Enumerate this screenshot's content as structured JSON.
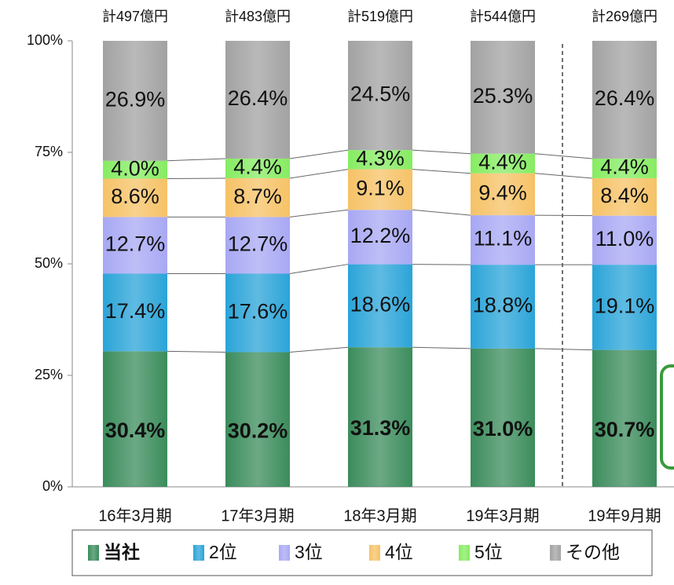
{
  "chart_data": {
    "type": "stacked_bar",
    "top_labels": [
      "計497億円",
      "計483億円",
      "計519億円",
      "計544億円",
      "計269億円"
    ],
    "categories": [
      "16年3月期",
      "17年3月期",
      "18年3月期",
      "19年3月期",
      "19年9月期"
    ],
    "series": [
      {
        "name": "当社",
        "color": "#3b8c5c",
        "values": [
          30.4,
          30.2,
          31.3,
          31.0,
          30.7
        ],
        "value_labels": [
          "30.4%",
          "30.2%",
          "31.3%",
          "31.0%",
          "30.7%"
        ]
      },
      {
        "name": "2位",
        "color": "#2aa4d8",
        "values": [
          17.4,
          17.6,
          18.6,
          18.8,
          19.1
        ],
        "value_labels": [
          "17.4%",
          "17.6%",
          "18.6%",
          "18.8%",
          "19.1%"
        ]
      },
      {
        "name": "3位",
        "color": "#a8a8f4",
        "values": [
          12.7,
          12.7,
          12.2,
          11.1,
          11.0
        ],
        "value_labels": [
          "12.7%",
          "12.7%",
          "12.2%",
          "11.1%",
          "11.0%"
        ]
      },
      {
        "name": "4位",
        "color": "#f6c266",
        "values": [
          8.6,
          8.7,
          9.1,
          9.4,
          8.4
        ],
        "value_labels": [
          "8.6%",
          "8.7%",
          "9.1%",
          "9.4%",
          "8.4%"
        ]
      },
      {
        "name": "5位",
        "color": "#86ec62",
        "values": [
          4.0,
          4.4,
          4.3,
          4.4,
          4.4
        ],
        "value_labels": [
          "4.0%",
          "4.4%",
          "4.3%",
          "4.4%",
          "4.4%"
        ]
      },
      {
        "name": "その他",
        "color": "#a2a2a2",
        "values": [
          26.9,
          26.4,
          24.5,
          25.3,
          26.4
        ],
        "value_labels": [
          "26.9%",
          "26.4%",
          "24.5%",
          "25.3%",
          "26.4%"
        ]
      }
    ],
    "ylim": [
      0,
      100
    ],
    "yticks": [
      {
        "value": 0,
        "label": "0%"
      },
      {
        "value": 25,
        "label": "25%"
      },
      {
        "value": 50,
        "label": "50%"
      },
      {
        "value": 75,
        "label": "75%"
      },
      {
        "value": 100,
        "label": "100%"
      }
    ],
    "legend": "bottom"
  }
}
